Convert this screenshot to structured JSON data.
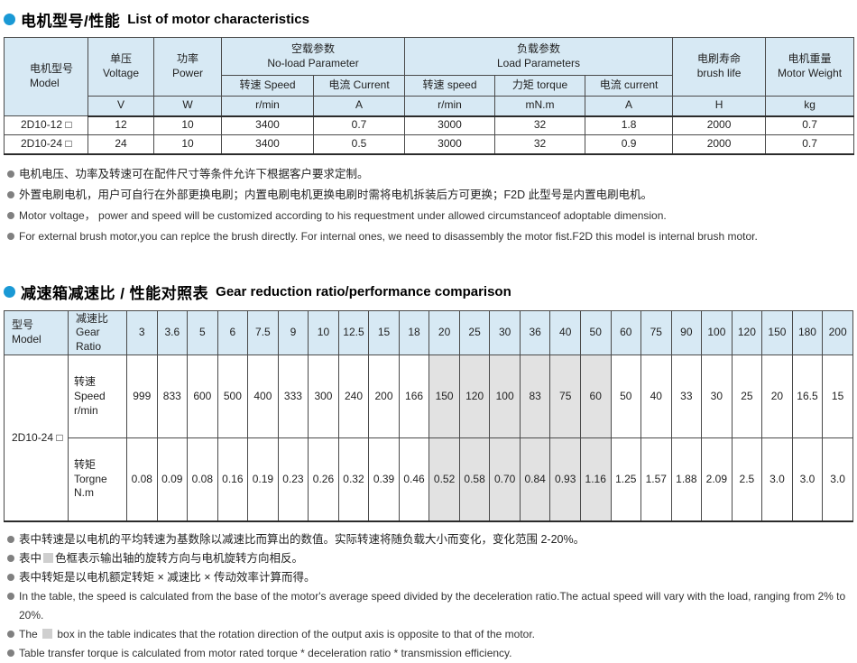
{
  "colors": {
    "accent_blue": "#1a99d5",
    "table_header_bg": "#d7e9f4",
    "reverse_rotation_gray": "#e2e2e2"
  },
  "section1": {
    "title_cn": "电机型号/性能",
    "title_en": "List of motor characteristics"
  },
  "table1": {
    "header": {
      "model": "电机型号\nModel",
      "voltage": "单压\nVoltage",
      "power": "功率\nPower",
      "noload": "空载参数\nNo-load Parameter",
      "load": "负载参数\nLoad Parameters",
      "brush": "电刷寿命\nbrush life",
      "weight": "电机重量\nMotor Weight",
      "noload_speed": "转速 Speed",
      "noload_current": "电流 Current",
      "load_speed": "转速 speed",
      "load_torque": "力矩 torque",
      "load_current": "电流 current"
    },
    "units": [
      "V",
      "W",
      "r/min",
      "A",
      "r/min",
      "mN.m",
      "A",
      "H",
      "kg"
    ],
    "rows": [
      [
        "2D10-12 □",
        "12",
        "10",
        "3400",
        "0.7",
        "3000",
        "32",
        "1.8",
        "2000",
        "0.7"
      ],
      [
        "2D10-24 □",
        "24",
        "10",
        "3400",
        "0.5",
        "3000",
        "32",
        "0.9",
        "2000",
        "0.7"
      ]
    ]
  },
  "notes1": [
    {
      "text": "电机电压、功率及转速可在配件尺寸等条件允许下根据客户要求定制。",
      "lang": "cn"
    },
    {
      "text": "外置电刷电机，用户可自行在外部更换电刷；内置电刷电机更换电刷时需将电机拆装后方可更换；F2D 此型号是内置电刷电机。",
      "lang": "cn"
    },
    {
      "text": "Motor voltage， power and speed will be customized according to his requestment under allowed circumstanceof adoptable dimension.",
      "lang": "en"
    },
    {
      "text": "For external brush motor,you can replce the brush directly. For internal ones, we need to disassembly the motor fist.F2D this model is internal brush motor.",
      "lang": "en"
    }
  ],
  "section2": {
    "title_cn": "减速箱减速比 / 性能对照表",
    "title_en": "Gear reduction ratio/performance comparison"
  },
  "table2": {
    "header": {
      "model": "型号\nModel",
      "ratio": "减速比\nGear Ratio"
    },
    "ratios": [
      "3",
      "3.6",
      "5",
      "6",
      "7.5",
      "9",
      "10",
      "12.5",
      "15",
      "18",
      "20",
      "25",
      "30",
      "36",
      "40",
      "50",
      "60",
      "75",
      "90",
      "100",
      "120",
      "150",
      "180",
      "200"
    ],
    "gray_indices": [
      10,
      11,
      12,
      13,
      14,
      15
    ],
    "model": "2D10-24 □",
    "rows": [
      {
        "label": "转速\nSpeed\nr/min",
        "values": [
          "999",
          "833",
          "600",
          "500",
          "400",
          "333",
          "300",
          "240",
          "200",
          "166",
          "150",
          "120",
          "100",
          "83",
          "75",
          "60",
          "50",
          "40",
          "33",
          "30",
          "25",
          "20",
          "16.5",
          "15"
        ]
      },
      {
        "label": "转矩\nTorgne\nN.m",
        "values": [
          "0.08",
          "0.09",
          "0.08",
          "0.16",
          "0.19",
          "0.23",
          "0.26",
          "0.32",
          "0.39",
          "0.46",
          "0.52",
          "0.58",
          "0.70",
          "0.84",
          "0.93",
          "1.16",
          "1.25",
          "1.57",
          "1.88",
          "2.09",
          "2.5",
          "3.0",
          "3.0",
          "3.0"
        ]
      }
    ]
  },
  "notes2": [
    {
      "text": "表中转速是以电机的平均转速为基数除以减速比而算出的数值。实际转速将随负载大小而变化，变化范围 2-20%。",
      "lang": "cn"
    },
    {
      "prefix": "表中",
      "swatch": true,
      "suffix": "色框表示输出轴的旋转方向与电机旋转方向相反。",
      "lang": "cn"
    },
    {
      "text": "表中转矩是以电机额定转矩 × 减速比 × 传动效率计算而得。",
      "lang": "cn"
    },
    {
      "text": "In the table, the speed is calculated from the base of the motor's average speed  divided by the deceleration ratio.The actual speed will vary with the load, ranging from 2% to 20%.",
      "lang": "en"
    },
    {
      "prefix": "The ",
      "swatch": true,
      "suffix": " box in the table indicates that the rotation direction of the output axis is opposite to that of the motor.",
      "lang": "en"
    },
    {
      "text": "Table transfer torque is calculated from motor rated torque * deceleration ratio * transmission efficiency.",
      "lang": "en"
    }
  ]
}
